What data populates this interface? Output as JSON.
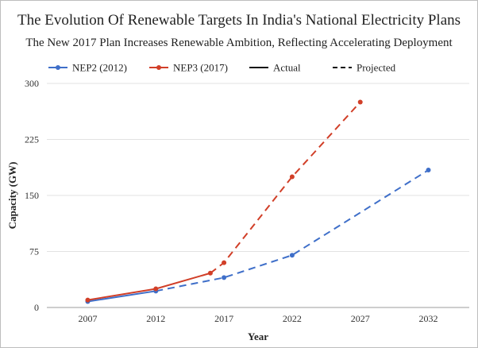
{
  "chart_data": {
    "type": "line",
    "title": "The Evolution Of Renewable Targets In India's National Electricity Plans",
    "subtitle": "The New  2017 Plan Increases Renewable Ambition, Reflecting Accelerating Deployment",
    "xlabel": "Year",
    "ylabel": "Capacity (GW)",
    "xlim": [
      2004,
      2035
    ],
    "ylim": [
      0,
      300
    ],
    "x_ticks": [
      2007,
      2012,
      2017,
      2022,
      2027,
      2032
    ],
    "y_ticks": [
      0,
      75,
      150,
      225,
      300
    ],
    "grid": "horizontal",
    "legend_position": "top",
    "legend": [
      {
        "label": "NEP2 (2012)",
        "kind": "series",
        "color": "#3f6fc9"
      },
      {
        "label": "NEP3 (2017)",
        "kind": "series",
        "color": "#d13f28"
      },
      {
        "label": "Actual",
        "kind": "style",
        "dash": "solid"
      },
      {
        "label": "Projected",
        "kind": "style",
        "dash": "dashed"
      }
    ],
    "series": [
      {
        "name": "NEP2 (2012)",
        "color": "#3f6fc9",
        "actual": {
          "x": [
            2007,
            2012
          ],
          "y": [
            8,
            22
          ]
        },
        "projected": {
          "x": [
            2012,
            2017,
            2022,
            2032
          ],
          "y": [
            22,
            40,
            70,
            184
          ]
        },
        "markers": {
          "x": [
            2007,
            2012,
            2017,
            2022,
            2032
          ],
          "y": [
            8,
            22,
            40,
            70,
            184
          ]
        }
      },
      {
        "name": "NEP3 (2017)",
        "color": "#d13f28",
        "actual": {
          "x": [
            2007,
            2012,
            2016
          ],
          "y": [
            10,
            25,
            46
          ]
        },
        "projected": {
          "x": [
            2016,
            2017,
            2022,
            2027
          ],
          "y": [
            46,
            60,
            175,
            275
          ]
        },
        "markers": {
          "x": [
            2007,
            2012,
            2016,
            2017,
            2022,
            2027
          ],
          "y": [
            10,
            25,
            46,
            60,
            175,
            275
          ]
        }
      }
    ]
  }
}
